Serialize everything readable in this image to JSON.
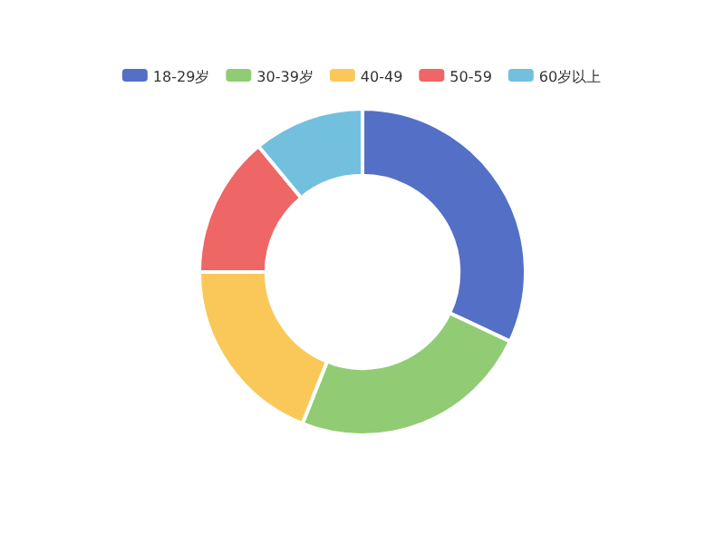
{
  "chart_data": {
    "type": "donut",
    "categories": [
      "18-29岁",
      "30-39岁",
      "40-49",
      "50-59",
      "60岁以上"
    ],
    "values": [
      32,
      24,
      19,
      14,
      11
    ],
    "colors": [
      "#5470c6",
      "#91cc75",
      "#fac858",
      "#ee6666",
      "#73c0de"
    ],
    "legend": "top"
  }
}
